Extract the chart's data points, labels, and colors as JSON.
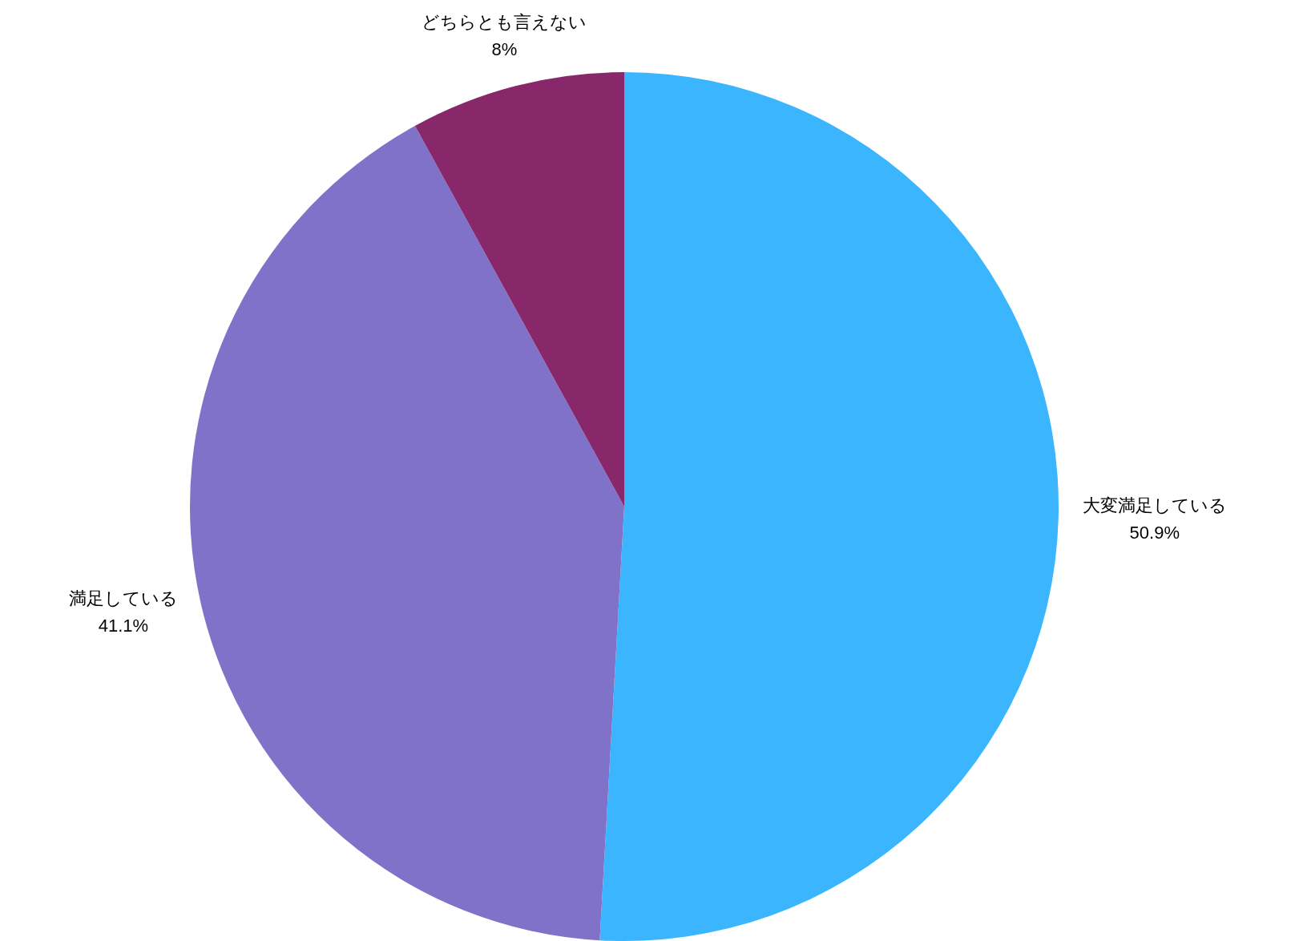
{
  "chart_data": {
    "type": "pie",
    "categories": [
      "大変満足している",
      "満足している",
      "どちらとも言えない"
    ],
    "values": [
      50.9,
      41.1,
      8
    ],
    "value_labels": [
      "50.9%",
      "41.1%",
      "8%"
    ],
    "colors": [
      "#3bb5fe",
      "#7f72c8",
      "#882769"
    ]
  }
}
